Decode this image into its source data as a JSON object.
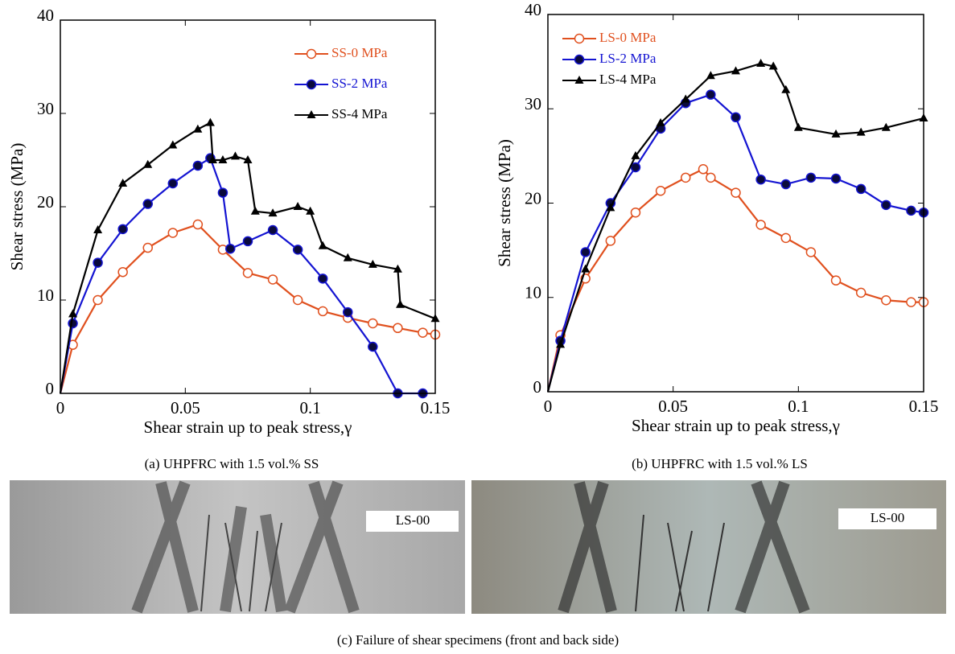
{
  "chart_data": [
    {
      "type": "line",
      "caption": "(a)  UHPFRC with 1.5 vol.% SS",
      "xlabel": "Shear strain up to peak stress,γ",
      "ylabel": "Shear stress (MPa)",
      "xlim": [
        0,
        0.15
      ],
      "xticks": [
        0,
        0.05,
        0.1,
        0.15
      ],
      "ylim": [
        0,
        40
      ],
      "yticks": [
        0,
        10,
        20,
        30,
        40
      ],
      "legend": "upper right",
      "series": [
        {
          "name": "SS-0 MPa",
          "color": "#e0501e",
          "marker": "circle-open",
          "x": [
            0,
            0.005,
            0.015,
            0.025,
            0.035,
            0.045,
            0.055,
            0.065,
            0.075,
            0.085,
            0.095,
            0.105,
            0.115,
            0.125,
            0.135,
            0.145,
            0.15
          ],
          "values": [
            0,
            5.2,
            10,
            13,
            15.6,
            17.2,
            18.1,
            15.4,
            12.9,
            12.2,
            10,
            8.8,
            8.1,
            7.5,
            7,
            6.5,
            6.3
          ]
        },
        {
          "name": "SS-2 MPa",
          "color": "#1414d2",
          "marker": "circle-filled",
          "x": [
            0,
            0.005,
            0.015,
            0.025,
            0.035,
            0.045,
            0.055,
            0.06,
            0.065,
            0.068,
            0.075,
            0.085,
            0.095,
            0.105,
            0.115,
            0.125,
            0.135,
            0.145
          ],
          "values": [
            0,
            7.5,
            14,
            17.6,
            20.3,
            22.5,
            24.4,
            25.2,
            21.5,
            15.5,
            16.3,
            17.5,
            15.4,
            12.3,
            8.7,
            5,
            0,
            0
          ]
        },
        {
          "name": "SS-4 MPa",
          "color": "#000000",
          "marker": "triangle",
          "x": [
            0,
            0.005,
            0.015,
            0.025,
            0.035,
            0.045,
            0.055,
            0.06,
            0.061,
            0.065,
            0.07,
            0.075,
            0.078,
            0.085,
            0.095,
            0.1,
            0.105,
            0.115,
            0.125,
            0.135,
            0.136,
            0.15
          ],
          "values": [
            0,
            8.5,
            17.5,
            22.5,
            24.5,
            26.6,
            28.3,
            29,
            25,
            25,
            25.4,
            25,
            19.5,
            19.3,
            20,
            19.5,
            15.8,
            14.5,
            13.8,
            13.3,
            9.5,
            8
          ]
        }
      ]
    },
    {
      "type": "line",
      "caption": "(b)  UHPFRC with 1.5 vol.% LS",
      "xlabel": "Shear strain up to peak stress,γ",
      "ylabel": "Shear stress (MPa)",
      "xlim": [
        0,
        0.15
      ],
      "xticks": [
        0,
        0.05,
        0.1,
        0.15
      ],
      "ylim": [
        0,
        40
      ],
      "yticks": [
        0,
        10,
        20,
        30,
        40
      ],
      "legend": "upper left",
      "series": [
        {
          "name": "LS-0 MPa",
          "color": "#e0501e",
          "marker": "circle-open",
          "x": [
            0,
            0.005,
            0.015,
            0.025,
            0.035,
            0.045,
            0.055,
            0.062,
            0.065,
            0.075,
            0.085,
            0.095,
            0.105,
            0.115,
            0.125,
            0.135,
            0.145,
            0.15
          ],
          "values": [
            0,
            6,
            12,
            16,
            19,
            21.3,
            22.7,
            23.6,
            22.7,
            21.1,
            17.7,
            16.3,
            14.8,
            11.8,
            10.5,
            9.7,
            9.5,
            9.5
          ]
        },
        {
          "name": "LS-2 MPa",
          "color": "#1414d2",
          "marker": "circle-filled",
          "x": [
            0,
            0.005,
            0.015,
            0.025,
            0.035,
            0.045,
            0.055,
            0.065,
            0.075,
            0.085,
            0.095,
            0.105,
            0.115,
            0.125,
            0.135,
            0.145,
            0.15
          ],
          "values": [
            0,
            5.4,
            14.8,
            20,
            23.8,
            27.9,
            30.6,
            31.5,
            29.1,
            22.5,
            22,
            22.7,
            22.6,
            21.5,
            19.8,
            19.2,
            19
          ]
        },
        {
          "name": "LS-4 MPa",
          "color": "#000000",
          "marker": "triangle",
          "x": [
            0,
            0.005,
            0.015,
            0.025,
            0.035,
            0.045,
            0.055,
            0.065,
            0.075,
            0.085,
            0.09,
            0.095,
            0.1,
            0.115,
            0.125,
            0.135,
            0.15
          ],
          "values": [
            0,
            5,
            13,
            19.5,
            25,
            28.5,
            31,
            33.5,
            34,
            34.8,
            34.5,
            32,
            28,
            27.3,
            27.5,
            28,
            29
          ]
        }
      ]
    }
  ],
  "photos": {
    "labels": [
      "LS-00",
      "LS-00"
    ],
    "caption": "(c)  Failure of shear specimens (front and back side)"
  }
}
